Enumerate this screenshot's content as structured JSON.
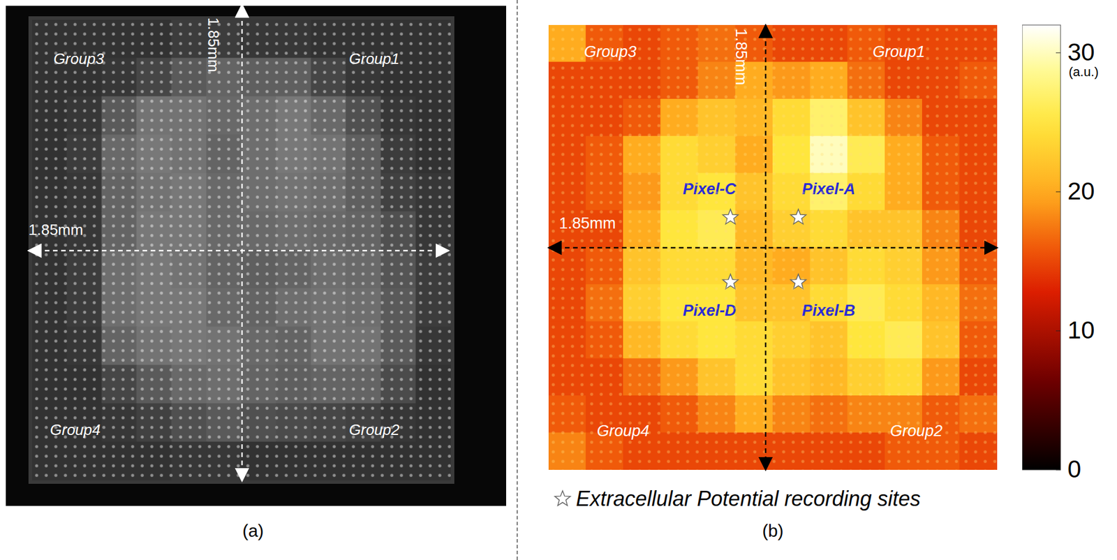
{
  "chart_data": [
    {
      "type": "image",
      "panel_label": "(a)",
      "xlim": [
        0,
        1.85
      ],
      "ylim": [
        0,
        1.85
      ],
      "tick_labels": false,
      "quadrant_labels": [
        "Group3",
        "Group1",
        "Group4",
        "Group2"
      ],
      "dimension_labels": {
        "horizontal": "1.85mm",
        "vertical": "1.85mm"
      },
      "cells": [
        [
          50,
          50,
          50,
          50,
          60,
          60,
          55,
          55,
          50,
          50,
          50,
          50
        ],
        [
          50,
          50,
          55,
          70,
          90,
          100,
          95,
          95,
          70,
          55,
          50,
          50
        ],
        [
          50,
          55,
          90,
          115,
          115,
          105,
          110,
          120,
          105,
          80,
          55,
          50
        ],
        [
          50,
          60,
          105,
          120,
          115,
          100,
          110,
          120,
          115,
          95,
          60,
          50
        ],
        [
          50,
          55,
          100,
          115,
          120,
          105,
          110,
          115,
          110,
          95,
          65,
          55
        ],
        [
          50,
          55,
          100,
          120,
          120,
          105,
          105,
          110,
          105,
          100,
          80,
          55
        ],
        [
          50,
          60,
          110,
          120,
          115,
          100,
          95,
          100,
          110,
          105,
          85,
          60
        ],
        [
          50,
          60,
          110,
          120,
          120,
          105,
          100,
          110,
          115,
          110,
          90,
          60
        ],
        [
          50,
          55,
          100,
          115,
          120,
          115,
          105,
          100,
          115,
          115,
          90,
          55
        ],
        [
          50,
          50,
          70,
          90,
          105,
          110,
          100,
          95,
          100,
          100,
          75,
          50
        ],
        [
          50,
          50,
          55,
          65,
          80,
          90,
          80,
          75,
          70,
          65,
          55,
          50
        ],
        [
          50,
          50,
          50,
          50,
          55,
          55,
          50,
          50,
          50,
          50,
          50,
          50
        ]
      ]
    },
    {
      "type": "heatmap",
      "panel_label": "(b)",
      "xlim": [
        0,
        1.85
      ],
      "ylim": [
        0,
        1.85
      ],
      "tick_labels": false,
      "quadrant_labels": [
        "Group3",
        "Group1",
        "Group4",
        "Group2"
      ],
      "dimension_labels": {
        "horizontal": "1.85mm",
        "vertical": "1.85mm"
      },
      "cells": [
        [
          20,
          16,
          15,
          16,
          17,
          16,
          15,
          15,
          16,
          15,
          15,
          15
        ],
        [
          15,
          15,
          15,
          16,
          18,
          20,
          19,
          20,
          17,
          15,
          15,
          16
        ],
        [
          15,
          15,
          16,
          20,
          22,
          21,
          24,
          27,
          22,
          18,
          15,
          15
        ],
        [
          15,
          16,
          20,
          24,
          23,
          20,
          25,
          30,
          26,
          20,
          16,
          15
        ],
        [
          15,
          16,
          19,
          24,
          25,
          22,
          24,
          27,
          24,
          20,
          16,
          15
        ],
        [
          15,
          15,
          20,
          25,
          26,
          21,
          23,
          24,
          22,
          22,
          18,
          15
        ],
        [
          15,
          16,
          22,
          24,
          24,
          21,
          20,
          22,
          24,
          23,
          19,
          16
        ],
        [
          15,
          17,
          23,
          25,
          25,
          22,
          22,
          24,
          26,
          24,
          21,
          17
        ],
        [
          15,
          16,
          21,
          24,
          25,
          24,
          23,
          22,
          25,
          26,
          22,
          16
        ],
        [
          15,
          15,
          17,
          19,
          22,
          24,
          22,
          21,
          23,
          24,
          19,
          15
        ],
        [
          16,
          15,
          15,
          16,
          18,
          20,
          18,
          17,
          18,
          18,
          16,
          17
        ],
        [
          18,
          16,
          15,
          15,
          15,
          15,
          15,
          15,
          15,
          16,
          16,
          15
        ]
      ],
      "colorbar": {
        "range": [
          0,
          32
        ],
        "ticks": [
          0,
          10,
          20,
          30
        ],
        "label": "(a.u.)"
      },
      "series": [
        {
          "name": "Extracellular Potential recording sites",
          "marker": "star",
          "points": [
            {
              "label": "Pixel-A",
              "x": 1.03,
              "y": 1.05
            },
            {
              "label": "Pixel-B",
              "x": 1.03,
              "y": 0.78
            },
            {
              "label": "Pixel-C",
              "x": 0.75,
              "y": 1.05
            },
            {
              "label": "Pixel-D",
              "x": 0.75,
              "y": 0.78
            }
          ]
        }
      ]
    }
  ]
}
